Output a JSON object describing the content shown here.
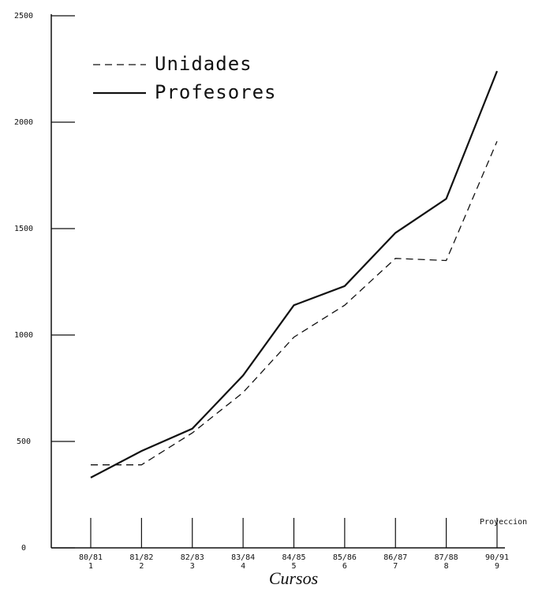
{
  "chart_data": {
    "type": "line",
    "x_label": "Cursos",
    "annotation": "Proyeccion",
    "categories": [
      "80/81",
      "81/82",
      "82/83",
      "83/84",
      "84/85",
      "85/86",
      "86/87",
      "87/88",
      "90/91"
    ],
    "category_numbers": [
      "1",
      "2",
      "3",
      "4",
      "5",
      "6",
      "7",
      "8",
      "9"
    ],
    "series": [
      {
        "name": "Unidades",
        "color": "#111111",
        "dashed": true,
        "values": [
          390,
          390,
          540,
          730,
          990,
          1140,
          1360,
          1350,
          1910
        ]
      },
      {
        "name": "Profesores",
        "color": "#111111",
        "dashed": false,
        "values": [
          330,
          455,
          560,
          810,
          1140,
          1230,
          1480,
          1640,
          2240
        ]
      }
    ],
    "ylim": [
      0,
      2500
    ],
    "yticks": [
      0,
      500,
      1000,
      1500,
      2000,
      2500
    ]
  }
}
